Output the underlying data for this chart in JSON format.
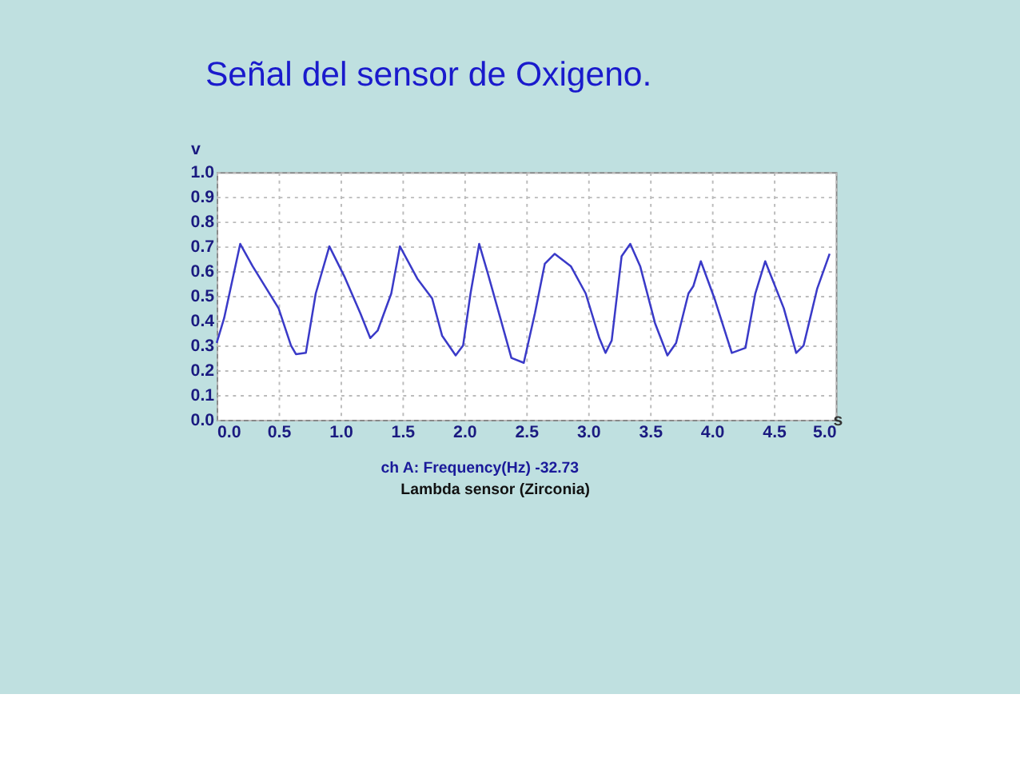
{
  "chart_data": {
    "type": "line",
    "title": "Señal del sensor de Oxigeno.",
    "xlabel": "s",
    "ylabel": "v",
    "annotations": [
      "ch A: Frequency(Hz)          -32.73",
      "Lambda sensor (Zirconia)"
    ],
    "x": [
      0.0,
      0.06,
      0.19,
      0.29,
      0.5,
      0.6,
      0.64,
      0.72,
      0.8,
      0.91,
      1.03,
      1.16,
      1.24,
      1.3,
      1.41,
      1.48,
      1.62,
      1.74,
      1.82,
      1.93,
      1.99,
      2.05,
      2.12,
      2.19,
      2.28,
      2.38,
      2.48,
      2.57,
      2.65,
      2.73,
      2.86,
      2.98,
      3.09,
      3.14,
      3.19,
      3.27,
      3.34,
      3.42,
      3.54,
      3.64,
      3.71,
      3.81,
      3.85,
      3.91,
      4.02,
      4.16,
      4.27,
      4.35,
      4.43,
      4.58,
      4.68,
      4.74,
      4.85,
      4.95
    ],
    "series": [
      {
        "color": "#3a3ac8",
        "values": [
          0.31,
          0.41,
          0.71,
          0.62,
          0.45,
          0.3,
          0.265,
          0.27,
          0.51,
          0.7,
          0.58,
          0.43,
          0.33,
          0.36,
          0.51,
          0.7,
          0.57,
          0.49,
          0.34,
          0.26,
          0.3,
          0.51,
          0.71,
          0.59,
          0.43,
          0.25,
          0.23,
          0.43,
          0.63,
          0.67,
          0.62,
          0.51,
          0.33,
          0.27,
          0.32,
          0.66,
          0.71,
          0.62,
          0.39,
          0.26,
          0.31,
          0.51,
          0.54,
          0.64,
          0.49,
          0.27,
          0.29,
          0.51,
          0.64,
          0.45,
          0.27,
          0.3,
          0.53,
          0.67
        ]
      }
    ],
    "xlim": [
      0,
      5
    ],
    "xticks": [
      {
        "value": 0,
        "label": "0.0"
      },
      0.5,
      {
        "value": 1,
        "label": "1.0"
      },
      1.5,
      {
        "value": 2,
        "label": "2.0"
      },
      2.5,
      {
        "value": 3,
        "label": "3.0"
      },
      3.5,
      {
        "value": 4,
        "label": "4.0"
      },
      4.5,
      {
        "value": 5,
        "label": "5.0"
      }
    ],
    "ylim": [
      0,
      1
    ],
    "yticks": [
      {
        "value": 0,
        "label": "0.0"
      },
      0.1,
      0.2,
      0.3,
      0.4,
      0.5,
      0.6,
      0.7,
      0.8,
      0.9,
      {
        "value": 1,
        "label": "1.0"
      }
    ],
    "grid": true,
    "line_style": "solid",
    "marker": "none"
  }
}
